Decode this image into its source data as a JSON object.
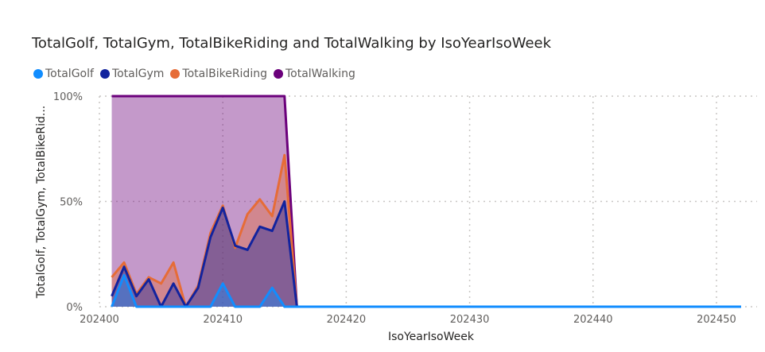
{
  "chart_data": {
    "type": "area",
    "title": "TotalGolf, TotalGym, TotalBikeRiding and TotalWalking by IsoYearIsoWeek",
    "xlabel": "IsoYearIsoWeek",
    "ylabel": "TotalGolf, TotalGym, TotalBikeRid...",
    "stacking": "percent",
    "xlim": [
      202400,
      202452
    ],
    "ylim": [
      0,
      100
    ],
    "x_ticks": [
      "202400",
      "202410",
      "202420",
      "202430",
      "202440",
      "202450"
    ],
    "y_ticks": [
      "0%",
      "50%",
      "100%"
    ],
    "legend_position": "top-left",
    "x": [
      202401,
      202402,
      202403,
      202404,
      202405,
      202406,
      202407,
      202408,
      202409,
      202410,
      202411,
      202412,
      202413,
      202414,
      202415,
      202416,
      202452
    ],
    "series": [
      {
        "name": "TotalGolf",
        "color": "#118DFF",
        "values": [
          0,
          15,
          0,
          0,
          0,
          0,
          0,
          0,
          0,
          11,
          0,
          0,
          0,
          9,
          0,
          0,
          0
        ]
      },
      {
        "name": "TotalGym",
        "color": "#12239E",
        "values": [
          5,
          19,
          5,
          13,
          0,
          11,
          0,
          9,
          33,
          47,
          29,
          27,
          38,
          36,
          50,
          0,
          0
        ]
      },
      {
        "name": "TotalBikeRiding",
        "color": "#E66C37",
        "values": [
          14,
          21,
          6,
          14,
          11,
          21,
          0,
          10,
          35,
          48,
          28,
          44,
          51,
          43,
          72,
          0,
          0
        ]
      },
      {
        "name": "TotalWalking",
        "color": "#6B007B",
        "values": [
          100,
          100,
          100,
          100,
          100,
          100,
          100,
          100,
          100,
          100,
          100,
          100,
          100,
          100,
          100,
          0,
          0
        ]
      }
    ]
  }
}
